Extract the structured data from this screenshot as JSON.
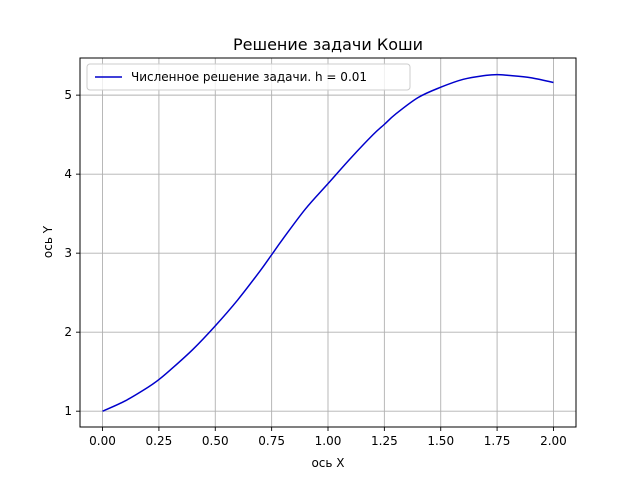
{
  "chart_data": {
    "type": "line",
    "title": "Решение задачи Коши",
    "xlabel": "ось X",
    "ylabel": "ось Y",
    "xlim": [
      -0.1,
      2.1
    ],
    "ylim": [
      0.8,
      5.47
    ],
    "xticks": [
      0.0,
      0.25,
      0.5,
      0.75,
      1.0,
      1.25,
      1.5,
      1.75,
      2.0
    ],
    "xtick_labels": [
      "0.00",
      "0.25",
      "0.50",
      "0.75",
      "1.00",
      "1.25",
      "1.50",
      "1.75",
      "2.00"
    ],
    "yticks": [
      1,
      2,
      3,
      4,
      5
    ],
    "ytick_labels": [
      "1",
      "2",
      "3",
      "4",
      "5"
    ],
    "grid": true,
    "legend_position": "top-left",
    "series": [
      {
        "name": "Численное решение задачи. h = 0.01",
        "color": "#0000cc",
        "x": [
          0.0,
          0.1,
          0.2,
          0.25,
          0.3,
          0.4,
          0.5,
          0.6,
          0.7,
          0.75,
          0.8,
          0.9,
          1.0,
          1.1,
          1.2,
          1.25,
          1.3,
          1.4,
          1.5,
          1.6,
          1.7,
          1.75,
          1.8,
          1.9,
          2.0
        ],
        "y": [
          1.0,
          1.13,
          1.3,
          1.4,
          1.52,
          1.78,
          2.08,
          2.41,
          2.78,
          2.98,
          3.18,
          3.56,
          3.88,
          4.2,
          4.5,
          4.63,
          4.76,
          4.97,
          5.1,
          5.2,
          5.25,
          5.26,
          5.25,
          5.22,
          5.16
        ]
      }
    ]
  }
}
